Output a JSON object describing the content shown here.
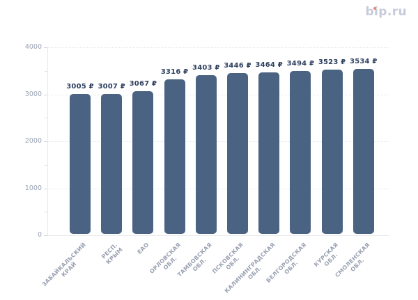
{
  "logo": {
    "text": "bip.ru",
    "dot_color": "#ee8168",
    "text_color": "#c7cbd9"
  },
  "chart_data": {
    "type": "bar",
    "title": "",
    "categories": [
      "ЗАБАЙКАЛЬСКИЙ\nКРАЙ",
      "РЕСП. КРЫМ",
      "ЕАО",
      "ОРЛОВСКАЯ\nОБЛ.",
      "ТАМБОВСКАЯ\nОБЛ.",
      "ПСКОВСКАЯ\nОБЛ.",
      "КАЛИНИНГРАДСКАЯ\nОБЛ.",
      "БЕЛГОРОДСКАЯ\nОБЛ.",
      "КУРСКАЯ ОБЛ.",
      "СМОЛЕНСКАЯ\nОБЛ."
    ],
    "values": [
      3005,
      3007,
      3067,
      3316,
      3403,
      3446,
      3464,
      3494,
      3523,
      3534
    ],
    "value_labels": [
      "3005 ₽",
      "3007 ₽",
      "3067 ₽",
      "3316 ₽",
      "3403 ₽",
      "3446 ₽",
      "3464 ₽",
      "3494 ₽",
      "3523 ₽",
      "3534 ₽"
    ],
    "currency": "₽",
    "xlabel": "",
    "ylabel": "",
    "ylim": [
      0,
      4000
    ],
    "yticks": [
      0,
      1000,
      2000,
      3000,
      4000
    ],
    "minor_yticks": [
      500,
      1500,
      2500,
      3500
    ],
    "grid": "horizontal-dotted",
    "legend": "none",
    "bar_color": "#4b6383",
    "value_label_color": "#2f4160",
    "axis_label_color": "#9aa2b3"
  }
}
